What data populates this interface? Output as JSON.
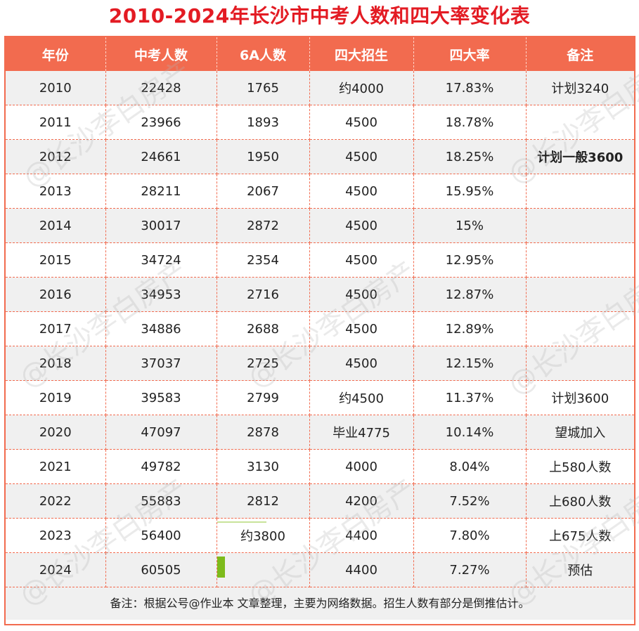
{
  "title": "2010-2024年长沙市中考人数和四大率变化表",
  "headers": [
    "年份",
    "中考人数",
    "6A人数",
    "四大招生",
    "四大率",
    "备注"
  ],
  "rows": [
    {
      "year": "2010",
      "exam": "22428",
      "a6": "1765",
      "enroll": "约4000",
      "rate": "17.83%",
      "note": "计划3240",
      "note_bold": false
    },
    {
      "year": "2011",
      "exam": "23966",
      "a6": "1893",
      "enroll": "4500",
      "rate": "18.78%",
      "note": "",
      "note_bold": false
    },
    {
      "year": "2012",
      "exam": "24661",
      "a6": "1950",
      "enroll": "4500",
      "rate": "18.25%",
      "note": "计划一般3600",
      "note_bold": true
    },
    {
      "year": "2013",
      "exam": "28211",
      "a6": "2067",
      "enroll": "4500",
      "rate": "15.95%",
      "note": "",
      "note_bold": false
    },
    {
      "year": "2014",
      "exam": "30017",
      "a6": "2872",
      "enroll": "4500",
      "rate": "15%",
      "note": "",
      "note_bold": false
    },
    {
      "year": "2015",
      "exam": "34724",
      "a6": "2354",
      "enroll": "4500",
      "rate": "12.95%",
      "note": "",
      "note_bold": false
    },
    {
      "year": "2016",
      "exam": "34953",
      "a6": "2716",
      "enroll": "4500",
      "rate": "12.87%",
      "note": "",
      "note_bold": false
    },
    {
      "year": "2017",
      "exam": "34886",
      "a6": "2688",
      "enroll": "4500",
      "rate": "12.89%",
      "note": "",
      "note_bold": false
    },
    {
      "year": "2018",
      "exam": "37037",
      "a6": "2725",
      "enroll": "4500",
      "rate": "12.15%",
      "note": "",
      "note_bold": false
    },
    {
      "year": "2019",
      "exam": "39583",
      "a6": "2799",
      "enroll": "约4500",
      "rate": "11.37%",
      "note": "计划3600",
      "note_bold": false
    },
    {
      "year": "2020",
      "exam": "47097",
      "a6": "2878",
      "enroll": "毕业4775",
      "rate": "10.14%",
      "note": "望城加入",
      "note_bold": false
    },
    {
      "year": "2021",
      "exam": "49782",
      "a6": "3130",
      "enroll": "4000",
      "rate": "8.04%",
      "note": "上580人数",
      "note_bold": false
    },
    {
      "year": "2022",
      "exam": "55883",
      "a6": "2812",
      "enroll": "4200",
      "rate": "7.52%",
      "note": "上680人数",
      "note_bold": false
    },
    {
      "year": "2023",
      "exam": "56400",
      "a6": "约3800",
      "enroll": "4400",
      "rate": "7.80%",
      "note": "上675人数",
      "note_bold": false
    },
    {
      "year": "2024",
      "exam": "60505",
      "a6": "",
      "enroll": "4400",
      "rate": "7.27%",
      "note": "预估",
      "note_bold": false
    }
  ],
  "footer": "备注：根据公号@作业本 文章整理，主要为网络数据。招生人数有部分是倒推估计。",
  "watermark": "@长沙李白房产",
  "colors": {
    "title": "#e31b23",
    "header_bg": "#f26b4f",
    "alt_row_bg": "#f0f0f0",
    "marker": "#7dbb1b"
  }
}
